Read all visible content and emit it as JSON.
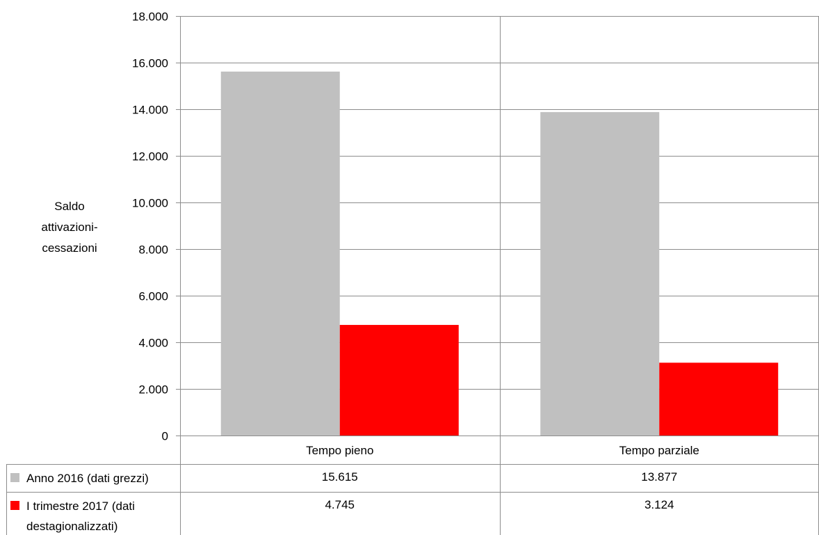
{
  "chart_data": {
    "type": "bar",
    "title": "",
    "xlabel": "",
    "ylabel_lines": [
      "Saldo",
      "attivazioni-",
      "cessazioni"
    ],
    "categories": [
      "Tempo pieno",
      "Tempo parziale"
    ],
    "series": [
      {
        "name": "Anno 2016 (dati grezzi)",
        "values": [
          15615,
          13877
        ],
        "labels": [
          "15.615",
          "13.877"
        ],
        "color": "#c0c0c0"
      },
      {
        "name_lines": [
          "I trimestre 2017 (dati",
          "destagionalizzati)"
        ],
        "values": [
          4745,
          3124
        ],
        "labels": [
          "4.745",
          "3.124"
        ],
        "color": "#ff0000"
      }
    ],
    "ylim": [
      0,
      18000
    ],
    "yticks": [
      0,
      2000,
      4000,
      6000,
      8000,
      10000,
      12000,
      14000,
      16000,
      18000
    ],
    "ytick_labels": [
      "0",
      "2.000",
      "4.000",
      "6.000",
      "8.000",
      "10.000",
      "12.000",
      "14.000",
      "16.000",
      "18.000"
    ],
    "grid": true,
    "legend": "data-table-below"
  }
}
